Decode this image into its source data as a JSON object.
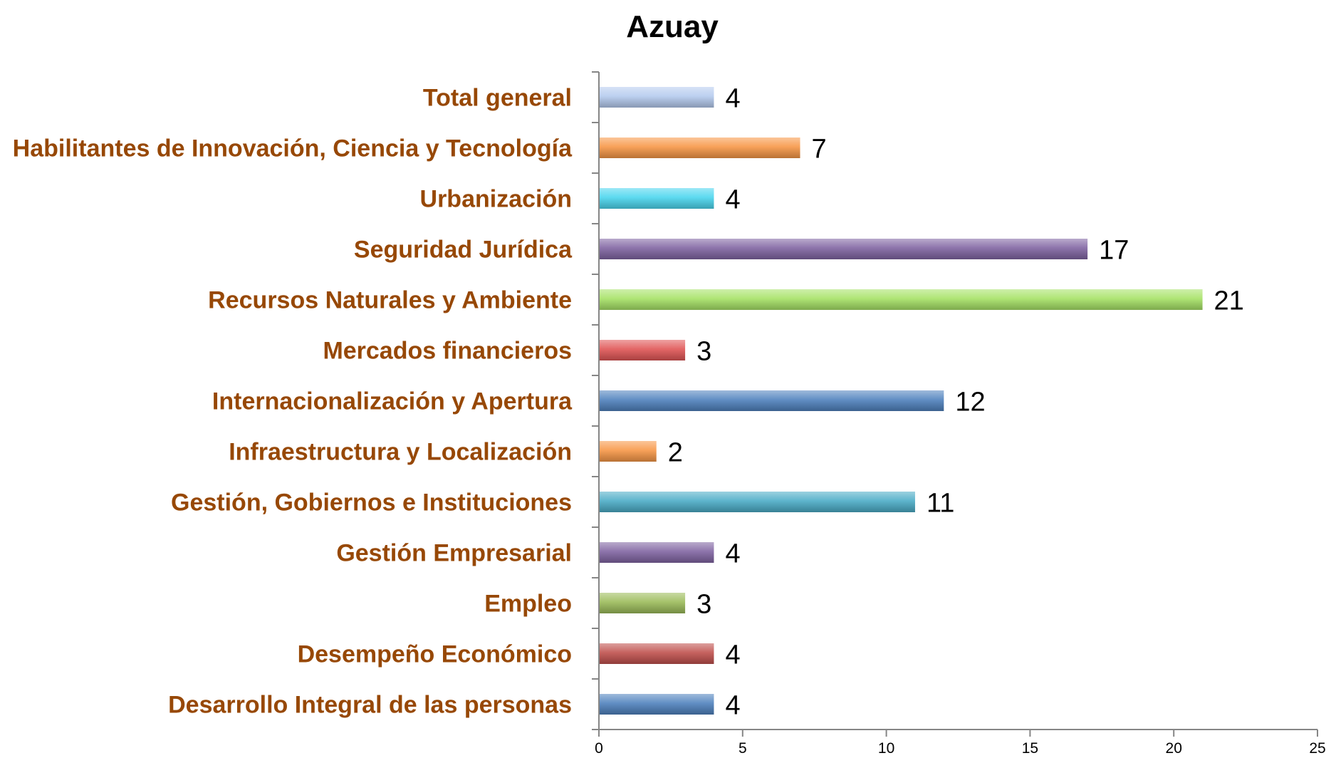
{
  "chart_data": {
    "type": "bar",
    "orientation": "horizontal",
    "title": "Azuay",
    "xlabel": "",
    "ylabel": "",
    "xlim": [
      0,
      25
    ],
    "x_ticks": [
      0,
      5,
      10,
      15,
      20,
      25
    ],
    "grid": false,
    "legend": "none",
    "categories": [
      "Total general",
      "Habilitantes de Innovación, Ciencia y Tecnología",
      "Urbanización",
      "Seguridad Jurídica",
      "Recursos Naturales y Ambiente",
      "Mercados financieros",
      "Internacionalización y Apertura",
      "Infraestructura y Localización",
      "Gestión, Gobiernos e Instituciones",
      "Gestión Empresarial",
      "Empleo",
      "Desempeño Económico",
      "Desarrollo Integral de las personas"
    ],
    "values": [
      4,
      7,
      4,
      17,
      21,
      3,
      12,
      2,
      11,
      4,
      3,
      4,
      4
    ],
    "colors": [
      "#b4cbee",
      "#f79646",
      "#4bd6ee",
      "#8064a2",
      "#a6e266",
      "#e05555",
      "#4f81bd",
      "#f79646",
      "#4bacc6",
      "#8064a2",
      "#9bbb59",
      "#c0504d",
      "#4f81bd"
    ],
    "label_color": "#974806"
  }
}
